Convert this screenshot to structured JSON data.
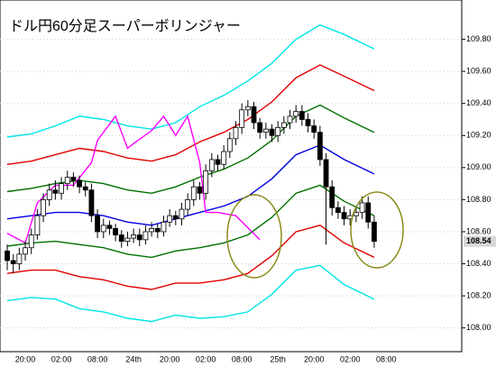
{
  "chart_data": {
    "type": "candlestick",
    "title": "ドル円60分足スーパーボリンジャー",
    "categories": [
      null,
      null,
      null,
      "20:00",
      null,
      null,
      null,
      null,
      null,
      "02:00",
      null,
      null,
      null,
      null,
      null,
      "08:00",
      null,
      null,
      null,
      null,
      null,
      "24th",
      null,
      null,
      null,
      null,
      null,
      "20:00",
      null,
      null,
      null,
      null,
      null,
      "02:00",
      null,
      null,
      null,
      null,
      null,
      "08:00",
      null,
      null,
      null,
      null,
      null,
      "25th",
      null,
      null,
      null,
      null,
      null,
      "20:00",
      null,
      null,
      null,
      null,
      null,
      "02:00",
      null,
      null,
      null,
      null,
      null,
      "08:00"
    ],
    "open": [
      108.48,
      108.42,
      108.4,
      108.46,
      108.5,
      108.58,
      108.7,
      108.8,
      108.86,
      108.84,
      108.9,
      108.94,
      108.92,
      108.88,
      108.86,
      108.7,
      108.6,
      108.64,
      108.62,
      108.58,
      108.54,
      108.56,
      108.58,
      108.55,
      108.6,
      108.62,
      108.6,
      108.66,
      108.7,
      108.68,
      108.74,
      108.8,
      108.88,
      108.84,
      108.98,
      109.05,
      109.02,
      109.1,
      109.18,
      109.25,
      109.36,
      109.38,
      109.28,
      109.22,
      109.24,
      109.2,
      109.25,
      109.28,
      109.32,
      109.35,
      109.3,
      109.26,
      109.22,
      109.05,
      108.88,
      108.75,
      108.72,
      108.68,
      108.7,
      108.72,
      108.78,
      108.66,
      null,
      null
    ],
    "high": [
      108.52,
      108.46,
      108.5,
      108.54,
      108.62,
      108.74,
      108.84,
      108.9,
      108.92,
      108.94,
      108.98,
      108.97,
      108.95,
      108.91,
      108.9,
      108.74,
      108.68,
      108.67,
      108.65,
      108.61,
      108.6,
      108.62,
      108.62,
      108.64,
      108.66,
      108.65,
      108.7,
      108.74,
      108.73,
      108.78,
      108.84,
      108.92,
      108.91,
      109.02,
      109.09,
      109.08,
      109.14,
      109.22,
      109.29,
      109.4,
      109.42,
      109.41,
      109.31,
      109.28,
      109.27,
      109.29,
      109.32,
      109.36,
      109.39,
      109.39,
      109.34,
      109.3,
      109.26,
      109.09,
      108.92,
      108.79,
      108.76,
      108.74,
      108.76,
      108.82,
      108.82,
      108.7,
      null,
      null
    ],
    "low": [
      108.36,
      108.34,
      108.36,
      108.42,
      108.46,
      108.55,
      108.66,
      108.76,
      108.8,
      108.8,
      108.86,
      108.88,
      108.84,
      108.82,
      108.66,
      108.56,
      108.56,
      108.58,
      108.54,
      108.5,
      108.51,
      108.53,
      108.51,
      108.52,
      108.57,
      108.56,
      108.57,
      108.63,
      108.64,
      108.64,
      108.7,
      108.76,
      108.8,
      108.8,
      108.94,
      108.98,
      108.99,
      109.06,
      109.14,
      109.21,
      109.32,
      109.24,
      109.18,
      109.18,
      109.16,
      109.16,
      109.21,
      109.24,
      109.28,
      109.26,
      109.22,
      109.18,
      109.01,
      108.52,
      108.7,
      108.68,
      108.64,
      108.64,
      108.66,
      108.68,
      108.62,
      108.5,
      null,
      null
    ],
    "close": [
      108.42,
      108.4,
      108.46,
      108.5,
      108.58,
      108.7,
      108.8,
      108.86,
      108.84,
      108.9,
      108.94,
      108.92,
      108.88,
      108.86,
      108.7,
      108.6,
      108.64,
      108.62,
      108.58,
      108.54,
      108.56,
      108.58,
      108.55,
      108.6,
      108.62,
      108.6,
      108.66,
      108.7,
      108.68,
      108.74,
      108.8,
      108.88,
      108.84,
      108.98,
      109.05,
      109.02,
      109.1,
      109.18,
      109.25,
      109.36,
      109.38,
      109.28,
      109.22,
      109.24,
      109.2,
      109.25,
      109.28,
      109.32,
      109.35,
      109.3,
      109.26,
      109.22,
      109.05,
      108.88,
      108.75,
      108.72,
      108.68,
      108.7,
      108.72,
      108.78,
      108.66,
      108.54,
      null,
      null
    ],
    "up_color": "#ffffff",
    "down_color": "#000000",
    "lines": [
      {
        "color": "#00e5e5",
        "x": [
          0,
          4,
          8,
          12,
          16,
          20,
          24,
          28,
          32,
          36,
          40,
          44,
          48,
          52,
          56,
          61
        ],
        "values": [
          109.19,
          109.21,
          109.26,
          109.32,
          109.3,
          109.26,
          109.24,
          109.28,
          109.38,
          109.45,
          109.54,
          109.65,
          109.8,
          109.89,
          109.83,
          109.74
        ]
      },
      {
        "color": "#e00000",
        "x": [
          0,
          4,
          8,
          12,
          16,
          20,
          24,
          28,
          32,
          36,
          40,
          44,
          48,
          52,
          56,
          61
        ],
        "values": [
          109.02,
          109.04,
          109.08,
          109.12,
          109.1,
          109.06,
          109.04,
          109.08,
          109.16,
          109.22,
          109.3,
          109.41,
          109.56,
          109.64,
          109.57,
          109.48
        ]
      },
      {
        "color": "#007000",
        "x": [
          0,
          4,
          8,
          12,
          16,
          20,
          24,
          28,
          32,
          36,
          40,
          44,
          48,
          52,
          56,
          61
        ],
        "values": [
          108.85,
          108.87,
          108.9,
          108.92,
          108.9,
          108.86,
          108.84,
          108.88,
          108.94,
          108.99,
          109.06,
          109.17,
          109.32,
          109.39,
          109.31,
          109.22
        ]
      },
      {
        "color": "#0000e0",
        "x": [
          0,
          4,
          8,
          12,
          16,
          20,
          24,
          28,
          32,
          36,
          40,
          44,
          48,
          52,
          56,
          61
        ],
        "values": [
          108.68,
          108.7,
          108.72,
          108.72,
          108.7,
          108.66,
          108.64,
          108.68,
          108.72,
          108.76,
          108.82,
          108.93,
          109.08,
          109.14,
          109.05,
          108.96
        ]
      },
      {
        "color": "#007000",
        "x": [
          0,
          4,
          8,
          12,
          16,
          20,
          24,
          28,
          32,
          36,
          40,
          44,
          48,
          52,
          56,
          61
        ],
        "values": [
          108.51,
          108.53,
          108.54,
          108.52,
          108.5,
          108.46,
          108.44,
          108.48,
          108.5,
          108.53,
          108.58,
          108.69,
          108.84,
          108.89,
          108.79,
          108.7
        ]
      },
      {
        "color": "#e00000",
        "x": [
          0,
          4,
          8,
          12,
          16,
          20,
          24,
          28,
          32,
          36,
          40,
          44,
          48,
          52,
          56,
          61
        ],
        "values": [
          108.34,
          108.36,
          108.36,
          108.32,
          108.3,
          108.26,
          108.24,
          108.28,
          108.28,
          108.3,
          108.34,
          108.45,
          108.6,
          108.64,
          108.53,
          108.44
        ]
      },
      {
        "color": "#00e5e5",
        "x": [
          0,
          4,
          8,
          12,
          16,
          20,
          24,
          28,
          32,
          36,
          40,
          44,
          48,
          52,
          56,
          61
        ],
        "values": [
          108.17,
          108.19,
          108.18,
          108.12,
          108.1,
          108.06,
          108.04,
          108.08,
          108.06,
          108.07,
          108.1,
          108.21,
          108.36,
          108.39,
          108.27,
          108.18
        ]
      },
      {
        "color": "#ff00ff",
        "x": [
          0,
          3,
          5,
          8,
          11,
          14,
          15,
          18,
          20,
          21,
          24,
          26,
          28,
          30,
          32,
          33,
          35,
          38,
          42
        ],
        "values": [
          108.59,
          108.53,
          108.78,
          108.89,
          108.89,
          109.03,
          109.17,
          109.32,
          109.12,
          109.15,
          109.23,
          109.32,
          109.2,
          109.32,
          109.03,
          108.72,
          108.72,
          108.7,
          108.55
        ]
      }
    ],
    "ylim": [
      107.88,
      110.0
    ],
    "yticks": [
      {
        "value": 108,
        "label": "108.00"
      },
      {
        "value": 108.2,
        "label": "108.20"
      },
      {
        "value": 108.4,
        "label": "108.40"
      },
      {
        "value": 108.6,
        "label": "108.60"
      },
      {
        "value": 108.8,
        "label": "108.80"
      },
      {
        "value": 109,
        "label": "109.00"
      },
      {
        "value": 109.2,
        "label": "109.20"
      },
      {
        "value": 109.4,
        "label": "109.40"
      },
      {
        "value": 109.6,
        "label": "109.60"
      },
      {
        "value": 109.8,
        "label": "109.80"
      }
    ],
    "grid": true,
    "last_price": 108.54
  }
}
